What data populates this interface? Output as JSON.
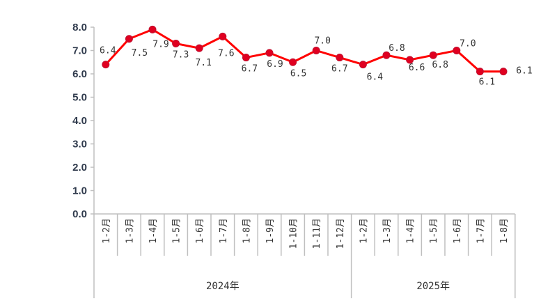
{
  "chart_data": {
    "type": "line",
    "title": "",
    "xlabel": "",
    "ylabel": "",
    "ylim": [
      0,
      8
    ],
    "yticks": [
      "0.0",
      "1.0",
      "2.0",
      "3.0",
      "4.0",
      "5.0",
      "6.0",
      "7.0",
      "8.0"
    ],
    "grid": false,
    "legend": "none",
    "groups": [
      {
        "label": "2024年",
        "categories": [
          "1-2月",
          "1-3月",
          "1-4月",
          "1-5月",
          "1-6月",
          "1-7月",
          "1-8月",
          "1-9月",
          "1-10月",
          "1-11月",
          "1-12月"
        ]
      },
      {
        "label": "2025年",
        "categories": [
          "1-2月",
          "1-3月",
          "1-4月",
          "1-5月",
          "1-6月",
          "1-7月",
          "1-8月"
        ]
      }
    ],
    "series": [
      {
        "values": [
          6.4,
          7.5,
          7.9,
          7.3,
          7.1,
          7.6,
          6.7,
          6.9,
          6.5,
          7.0,
          6.7,
          6.4,
          6.8,
          6.6,
          6.8,
          7.0,
          6.1,
          6.1
        ],
        "labels": [
          "6.4",
          "7.5",
          "7.9",
          "7.3",
          "7.1",
          "7.6",
          "6.7",
          "6.9",
          "6.5",
          "7.0",
          "6.7",
          "6.4",
          "6.8",
          "6.6",
          "6.8",
          "7.0",
          "6.1",
          "6.1"
        ],
        "color": "#ff0000",
        "marker_color": "#e00020"
      }
    ],
    "axis_color": "#bfbfbf"
  }
}
